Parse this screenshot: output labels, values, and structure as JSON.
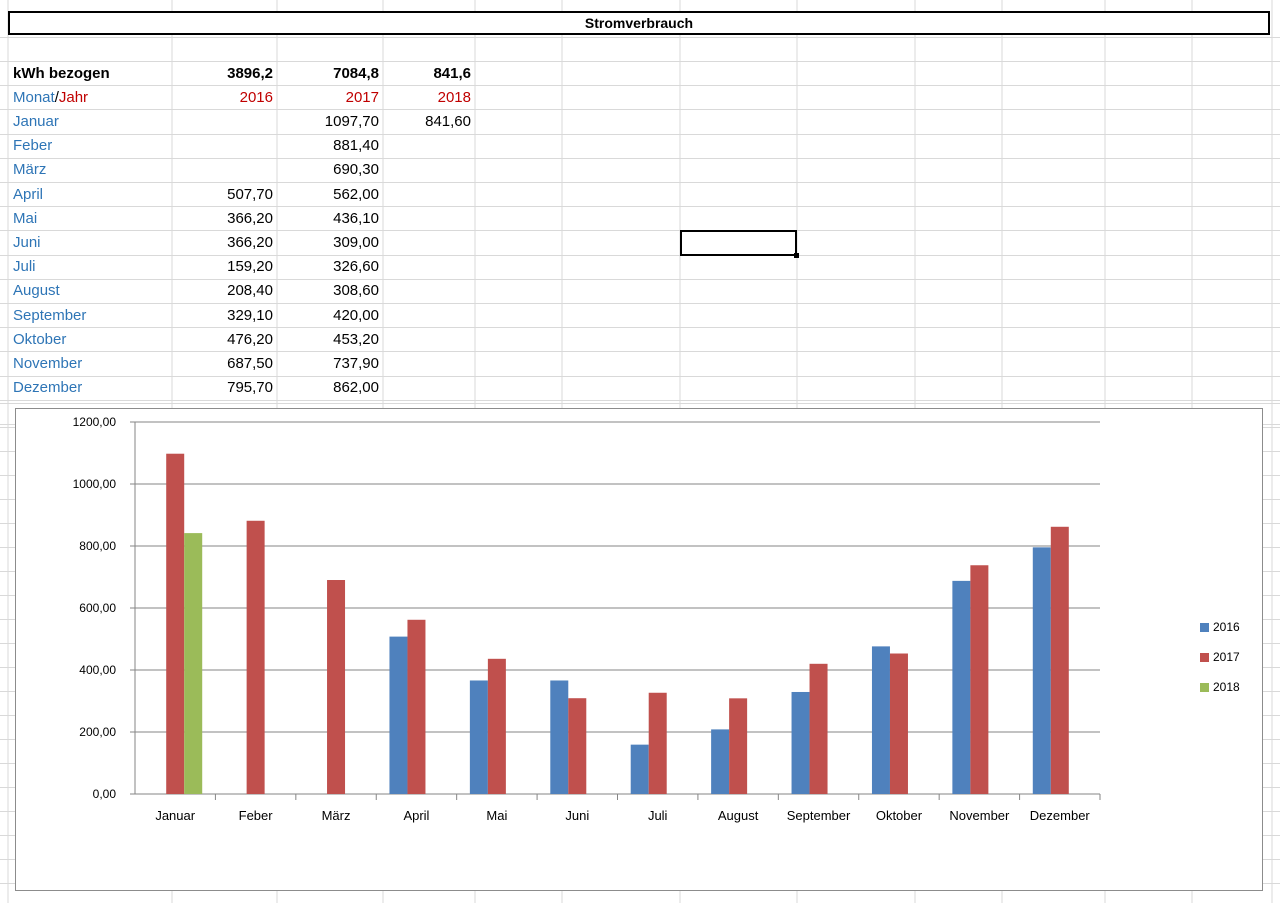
{
  "sheet": {
    "title": "Stromverbrauch",
    "kwh_row": {
      "label": "kWh bezogen",
      "v2016": "3896,2",
      "v2017": "7084,8",
      "v2018": "841,6"
    },
    "header_row": {
      "label_a": "Monat",
      "label_sep": "/",
      "label_b": "Jahr",
      "y2016": "2016",
      "y2017": "2017",
      "y2018": "2018"
    },
    "rows": [
      {
        "month": "Januar",
        "v2016": "",
        "v2017": "1097,70",
        "v2018": "841,60"
      },
      {
        "month": "Feber",
        "v2016": "",
        "v2017": "881,40",
        "v2018": ""
      },
      {
        "month": "März",
        "v2016": "",
        "v2017": "690,30",
        "v2018": ""
      },
      {
        "month": "April",
        "v2016": "507,70",
        "v2017": "562,00",
        "v2018": ""
      },
      {
        "month": "Mai",
        "v2016": "366,20",
        "v2017": "436,10",
        "v2018": ""
      },
      {
        "month": "Juni",
        "v2016": "366,20",
        "v2017": "309,00",
        "v2018": ""
      },
      {
        "month": "Juli",
        "v2016": "159,20",
        "v2017": "326,60",
        "v2018": ""
      },
      {
        "month": "August",
        "v2016": "208,40",
        "v2017": "308,60",
        "v2018": ""
      },
      {
        "month": "September",
        "v2016": "329,10",
        "v2017": "420,00",
        "v2018": ""
      },
      {
        "month": "Oktober",
        "v2016": "476,20",
        "v2017": "453,20",
        "v2018": ""
      },
      {
        "month": "November",
        "v2016": "687,50",
        "v2017": "737,90",
        "v2018": ""
      },
      {
        "month": "Dezember",
        "v2016": "795,70",
        "v2017": "862,00",
        "v2018": ""
      }
    ]
  },
  "colors": {
    "s2016": "#4f81bd",
    "s2017": "#c0504d",
    "s2018": "#9bbb59",
    "label_blue": "#2e75b6",
    "label_red": "#c00000",
    "gridline": "#d9d9d9"
  },
  "chart_data": {
    "type": "bar",
    "categories": [
      "Januar",
      "Feber",
      "März",
      "April",
      "Mai",
      "Juni",
      "Juli",
      "August",
      "September",
      "Oktober",
      "November",
      "Dezember"
    ],
    "series": [
      {
        "name": "2016",
        "color": "#4f81bd",
        "values": [
          null,
          null,
          null,
          507.7,
          366.2,
          366.2,
          159.2,
          208.4,
          329.1,
          476.2,
          687.5,
          795.7
        ]
      },
      {
        "name": "2017",
        "color": "#c0504d",
        "values": [
          1097.7,
          881.4,
          690.3,
          562.0,
          436.1,
          309.0,
          326.6,
          308.6,
          420.0,
          453.2,
          737.9,
          862.0
        ]
      },
      {
        "name": "2018",
        "color": "#9bbb59",
        "values": [
          841.6,
          null,
          null,
          null,
          null,
          null,
          null,
          null,
          null,
          null,
          null,
          null
        ]
      }
    ],
    "ylim": [
      0,
      1200
    ],
    "yticks": [
      "0,00",
      "200,00",
      "400,00",
      "600,00",
      "800,00",
      "1000,00",
      "1200,00"
    ],
    "grid": true,
    "legend_position": "right"
  }
}
